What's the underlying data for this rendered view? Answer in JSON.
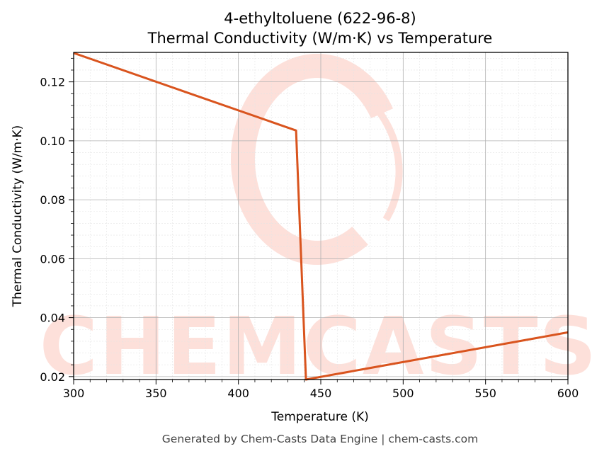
{
  "chart_data": {
    "type": "line",
    "title": "4-ethyltoluene (622-96-8)",
    "subtitle": "Thermal Conductivity (W/m·K) vs Temperature",
    "xlabel": "Temperature (K)",
    "ylabel": "Thermal Conductivity (W/m·K)",
    "xlim": [
      300,
      600
    ],
    "ylim": [
      0.019,
      0.13
    ],
    "x_ticks": [
      300,
      350,
      400,
      450,
      500,
      550,
      600
    ],
    "y_ticks": [
      0.02,
      0.04,
      0.06,
      0.08,
      0.1,
      0.12
    ],
    "y_tick_labels": [
      "0.02",
      "0.04",
      "0.06",
      "0.08",
      "0.10",
      "0.12"
    ],
    "grid": true,
    "series": [
      {
        "color": "#d9541e",
        "x": [
          300,
          435,
          441,
          600
        ],
        "y": [
          0.1298,
          0.1035,
          0.019,
          0.035
        ]
      }
    ]
  },
  "watermark": {
    "text": "CHEMCASTS",
    "color": "#fde0da"
  },
  "footer": "Generated by Chem-Casts Data Engine | chem-casts.com"
}
